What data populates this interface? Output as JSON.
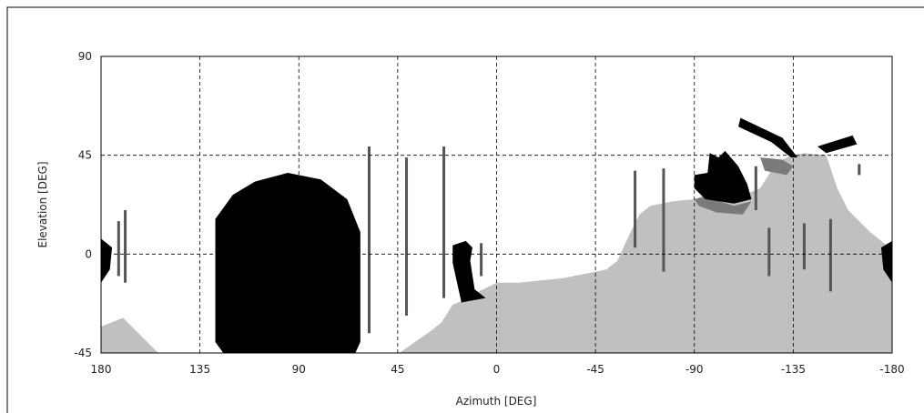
{
  "chart_data": {
    "type": "area",
    "xlabel": "Azimuth [DEG]",
    "ylabel": "Elevation [DEG]",
    "xlim": [
      180,
      -180
    ],
    "ylim": [
      -45,
      90
    ],
    "x_ticks": [
      "180",
      "135",
      "90",
      "45",
      "0",
      "-45",
      "-90",
      "-135",
      "-180"
    ],
    "y_ticks": [
      "90",
      "45",
      "0",
      "-45"
    ],
    "grid": true,
    "colors": {
      "terrain": "#c0c0c0",
      "obstruction": "#000000",
      "pole": "#555555",
      "grid": "#000000"
    },
    "terrain_profile": [
      [
        180,
        -33
      ],
      [
        170,
        -29
      ],
      [
        160,
        -39
      ],
      [
        150,
        -49
      ],
      [
        140,
        -55
      ],
      [
        130,
        -60
      ],
      [
        120,
        -64
      ],
      [
        110,
        -66
      ],
      [
        100,
        -66
      ],
      [
        90,
        -66
      ],
      [
        80,
        -64
      ],
      [
        70,
        -60
      ],
      [
        60,
        -55
      ],
      [
        50,
        -49
      ],
      [
        40,
        -42
      ],
      [
        30,
        -35
      ],
      [
        25,
        -31
      ],
      [
        20,
        -23
      ],
      [
        15,
        -21
      ],
      [
        10,
        -18
      ],
      [
        0,
        -13
      ],
      [
        -10,
        -13
      ],
      [
        -20,
        -12
      ],
      [
        -30,
        -11
      ],
      [
        -40,
        -9
      ],
      [
        -50,
        -7
      ],
      [
        -55,
        -3
      ],
      [
        -60,
        8
      ],
      [
        -65,
        18
      ],
      [
        -70,
        22
      ],
      [
        -80,
        24
      ],
      [
        -90,
        25
      ],
      [
        -95,
        27
      ],
      [
        -100,
        28
      ],
      [
        -110,
        28
      ],
      [
        -115,
        28
      ],
      [
        -120,
        30
      ],
      [
        -125,
        38
      ],
      [
        -130,
        43
      ],
      [
        -135,
        45
      ],
      [
        -140,
        46
      ],
      [
        -150,
        45
      ],
      [
        -155,
        30
      ],
      [
        -160,
        20
      ],
      [
        -170,
        10
      ],
      [
        -180,
        2
      ]
    ],
    "obstructions": [
      {
        "label": "large-dome",
        "points": [
          [
            128,
            16
          ],
          [
            120,
            27
          ],
          [
            110,
            33
          ],
          [
            95,
            37
          ],
          [
            80,
            34
          ],
          [
            68,
            25
          ],
          [
            62,
            10
          ],
          [
            62,
            -40
          ],
          [
            72,
            -62
          ],
          [
            72,
            -66
          ],
          [
            112,
            -66
          ],
          [
            112,
            -62
          ],
          [
            128,
            -40
          ]
        ]
      },
      {
        "label": "small-dome-left-edge",
        "points": [
          [
            180,
            7
          ],
          [
            175,
            3
          ],
          [
            176,
            -7
          ],
          [
            180,
            -13
          ]
        ]
      },
      {
        "label": "small-dome-center",
        "points": [
          [
            20,
            4
          ],
          [
            14,
            6
          ],
          [
            11,
            3
          ],
          [
            12,
            -3
          ],
          [
            10,
            -16
          ],
          [
            5,
            -20
          ],
          [
            16,
            -22
          ],
          [
            20,
            -4
          ]
        ]
      },
      {
        "label": "small-dome-right-edge",
        "points": [
          [
            -180,
            6
          ],
          [
            -175,
            3
          ],
          [
            -176,
            -7
          ],
          [
            -180,
            -13
          ]
        ]
      },
      {
        "label": "dish",
        "points": [
          [
            -90,
            36
          ],
          [
            -96,
            37
          ],
          [
            -97,
            46
          ],
          [
            -101,
            44
          ],
          [
            -104,
            47
          ],
          [
            -110,
            40
          ],
          [
            -114,
            32
          ],
          [
            -116,
            25
          ],
          [
            -108,
            23
          ],
          [
            -95,
            25
          ],
          [
            -90,
            30
          ]
        ]
      },
      {
        "label": "arm-upper",
        "points": [
          [
            -111,
            62
          ],
          [
            -130,
            53
          ],
          [
            -137,
            44
          ],
          [
            -134,
            44
          ],
          [
            -125,
            51
          ],
          [
            -110,
            58
          ]
        ]
      },
      {
        "label": "arm-tip",
        "points": [
          [
            -146,
            49
          ],
          [
            -162,
            54
          ],
          [
            -164,
            50
          ],
          [
            -150,
            46
          ]
        ]
      }
    ],
    "shading": [
      {
        "label": "dish-shadow",
        "points": [
          [
            -90,
            25
          ],
          [
            -95,
            26
          ],
          [
            -108,
            22
          ],
          [
            -116,
            24
          ],
          [
            -112,
            18
          ],
          [
            -100,
            19
          ],
          [
            -92,
            22
          ]
        ]
      },
      {
        "label": "arm-shadow",
        "points": [
          [
            -120,
            44
          ],
          [
            -130,
            43
          ],
          [
            -135,
            40
          ],
          [
            -132,
            36
          ],
          [
            -122,
            38
          ]
        ]
      }
    ],
    "poles": [
      {
        "az": 58,
        "top": 49,
        "bottom": -36
      },
      {
        "az": 41,
        "top": 44,
        "bottom": -28
      },
      {
        "az": 24,
        "top": 49,
        "bottom": -20
      },
      {
        "az": 7,
        "top": 5,
        "bottom": -10
      },
      {
        "az": 172,
        "top": 15,
        "bottom": -10
      },
      {
        "az": 169,
        "top": 20,
        "bottom": -13
      },
      {
        "az": -63,
        "top": 38,
        "bottom": 3
      },
      {
        "az": -76,
        "top": 39,
        "bottom": -8
      },
      {
        "az": -118,
        "top": 40,
        "bottom": 20
      },
      {
        "az": -124,
        "top": 12,
        "bottom": -10
      },
      {
        "az": -140,
        "top": 14,
        "bottom": -7
      },
      {
        "az": -152,
        "top": 16,
        "bottom": -17
      },
      {
        "az": -165,
        "top": 41,
        "bottom": 36
      }
    ]
  }
}
